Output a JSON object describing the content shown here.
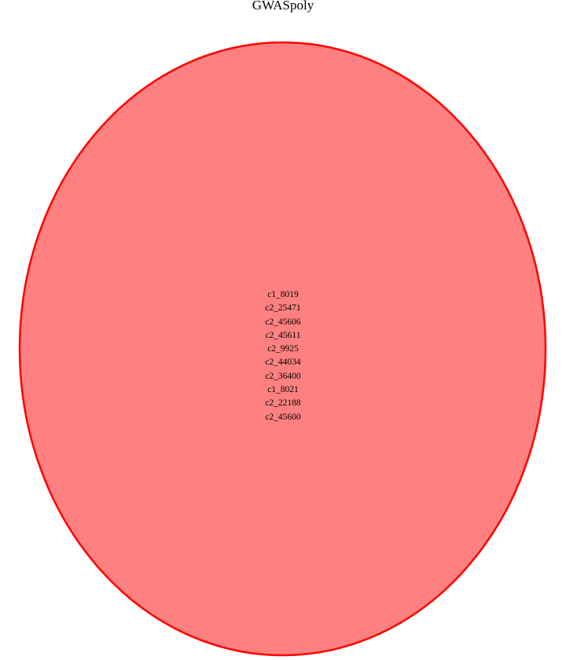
{
  "set": {
    "name": "GWASpoly",
    "fill_color": "#ff8080",
    "stroke_color": "#ff0000"
  },
  "members": [
    "c1_8019",
    "c2_25471",
    "c2_45606",
    "c2_45611",
    "c2_9925",
    "c2_44034",
    "c2_36400",
    "c1_8021",
    "c2_22188",
    "c2_45600"
  ]
}
